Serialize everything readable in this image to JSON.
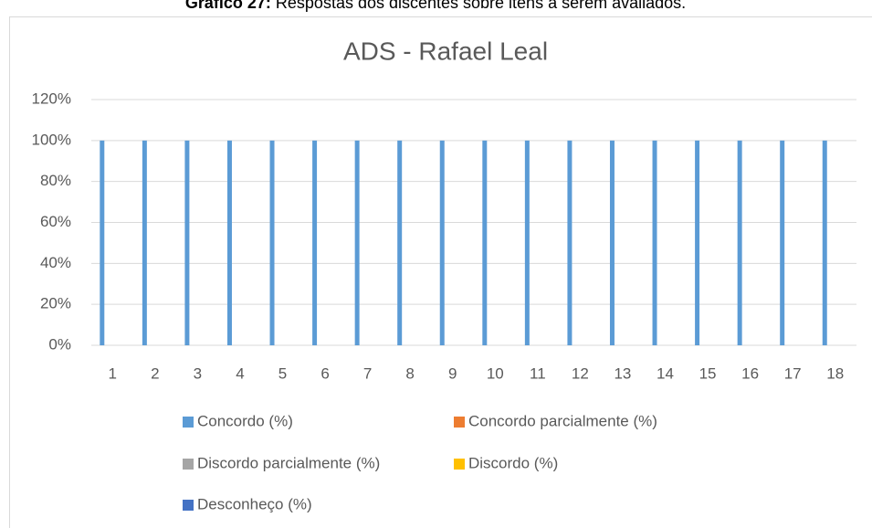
{
  "chart_data": {
    "type": "bar",
    "caption_label": "Gráfico 27:",
    "caption_text": "Respostas dos discentes sobre itens a serem avaliados.",
    "title": "ADS - Rafael Leal",
    "categories": [
      "1",
      "2",
      "3",
      "4",
      "5",
      "6",
      "7",
      "8",
      "9",
      "10",
      "11",
      "12",
      "13",
      "14",
      "15",
      "16",
      "17",
      "18"
    ],
    "series": [
      {
        "name": "Concordo (%)",
        "color": "#5b9bd5",
        "values": [
          100,
          100,
          100,
          100,
          100,
          100,
          100,
          100,
          100,
          100,
          100,
          100,
          100,
          100,
          100,
          100,
          100,
          100
        ]
      },
      {
        "name": "Concordo parcialmente (%)",
        "color": "#ed7d31",
        "values": [
          0,
          0,
          0,
          0,
          0,
          0,
          0,
          0,
          0,
          0,
          0,
          0,
          0,
          0,
          0,
          0,
          0,
          0
        ]
      },
      {
        "name": "Discordo parcialmente (%)",
        "color": "#a5a5a5",
        "values": [
          0,
          0,
          0,
          0,
          0,
          0,
          0,
          0,
          0,
          0,
          0,
          0,
          0,
          0,
          0,
          0,
          0,
          0
        ]
      },
      {
        "name": "Discordo (%)",
        "color": "#ffc000",
        "values": [
          0,
          0,
          0,
          0,
          0,
          0,
          0,
          0,
          0,
          0,
          0,
          0,
          0,
          0,
          0,
          0,
          0,
          0
        ]
      },
      {
        "name": "Desconheço (%)",
        "color": "#4472c4",
        "values": [
          0,
          0,
          0,
          0,
          0,
          0,
          0,
          0,
          0,
          0,
          0,
          0,
          0,
          0,
          0,
          0,
          0,
          0
        ]
      }
    ],
    "ylim": [
      0,
      120
    ],
    "yticks": [
      {
        "value": 0,
        "label": "0%"
      },
      {
        "value": 20,
        "label": "20%"
      },
      {
        "value": 40,
        "label": "40%"
      },
      {
        "value": 60,
        "label": "60%"
      },
      {
        "value": 80,
        "label": "80%"
      },
      {
        "value": 100,
        "label": "100%"
      },
      {
        "value": 120,
        "label": "120%"
      }
    ],
    "grid": true,
    "legend": "bottom"
  }
}
